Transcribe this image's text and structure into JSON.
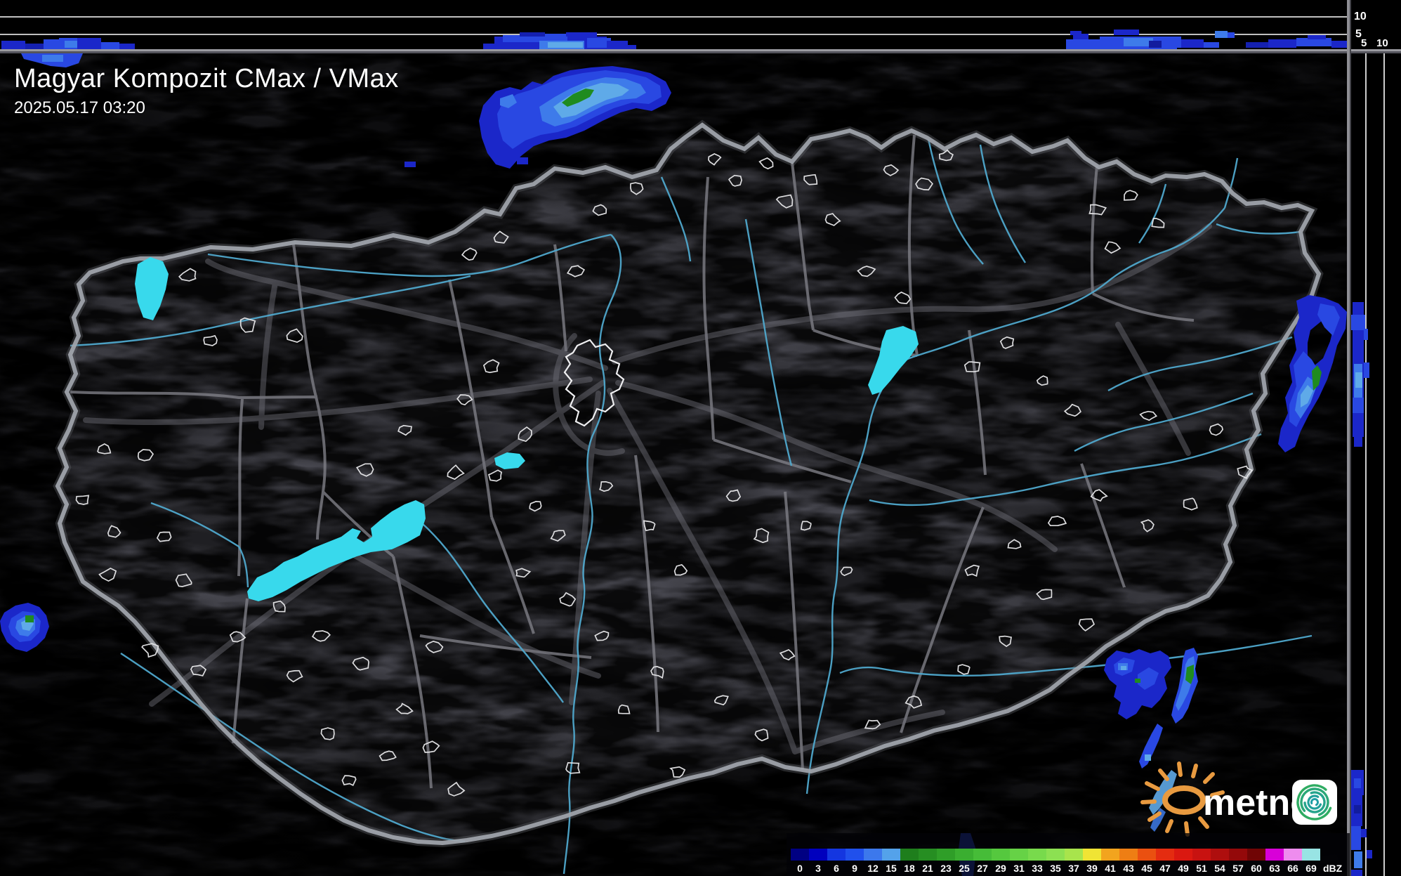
{
  "header": {
    "title": "Magyar Kompozit CMax / VMax",
    "timestamp": "2025.05.17 03:20"
  },
  "profile_axes": {
    "top": {
      "labels": [
        "10",
        "5"
      ],
      "unit_meaning": "height km"
    },
    "right": {
      "labels": [
        "5",
        "10"
      ],
      "unit_meaning": "height km"
    }
  },
  "legend": {
    "unit": "dBZ",
    "levels": [
      {
        "label": "0",
        "color": "#000082"
      },
      {
        "label": "3",
        "color": "#0000BE"
      },
      {
        "label": "6",
        "color": "#1436E0"
      },
      {
        "label": "9",
        "color": "#2050EC"
      },
      {
        "label": "12",
        "color": "#3C78EC"
      },
      {
        "label": "15",
        "color": "#54A2EA"
      },
      {
        "label": "18",
        "color": "#1E7E1C"
      },
      {
        "label": "21",
        "color": "#268E22"
      },
      {
        "label": "23",
        "color": "#2F9E28"
      },
      {
        "label": "25",
        "color": "#3AAE30"
      },
      {
        "label": "27",
        "color": "#46BC38"
      },
      {
        "label": "29",
        "color": "#55C83E"
      },
      {
        "label": "31",
        "color": "#66D246"
      },
      {
        "label": "33",
        "color": "#78DA4C"
      },
      {
        "label": "35",
        "color": "#8CE052"
      },
      {
        "label": "37",
        "color": "#A8E44C"
      },
      {
        "label": "39",
        "color": "#F0E434"
      },
      {
        "label": "41",
        "color": "#F2A41E"
      },
      {
        "label": "43",
        "color": "#EE7E14"
      },
      {
        "label": "45",
        "color": "#EA5010"
      },
      {
        "label": "47",
        "color": "#E42C10"
      },
      {
        "label": "49",
        "color": "#DA1810"
      },
      {
        "label": "51",
        "color": "#C81210"
      },
      {
        "label": "54",
        "color": "#AE0E0E"
      },
      {
        "label": "57",
        "color": "#94090A"
      },
      {
        "label": "60",
        "color": "#700505"
      },
      {
        "label": "63",
        "color": "#D800D8"
      },
      {
        "label": "66",
        "color": "#EE8CEE"
      },
      {
        "label": "69",
        "color": "#98E4E4"
      }
    ]
  },
  "logo": {
    "text": "metnet"
  },
  "colors": {
    "lake": "#38D9EC",
    "river": "#4FA8CC",
    "echo_weak": "#1B27C9",
    "echo_moderate": "#2948E2",
    "echo_strong": "#3E7BEA",
    "echo_intense": "#5FAAE8",
    "echo_core_green": "#1F8B1F"
  }
}
